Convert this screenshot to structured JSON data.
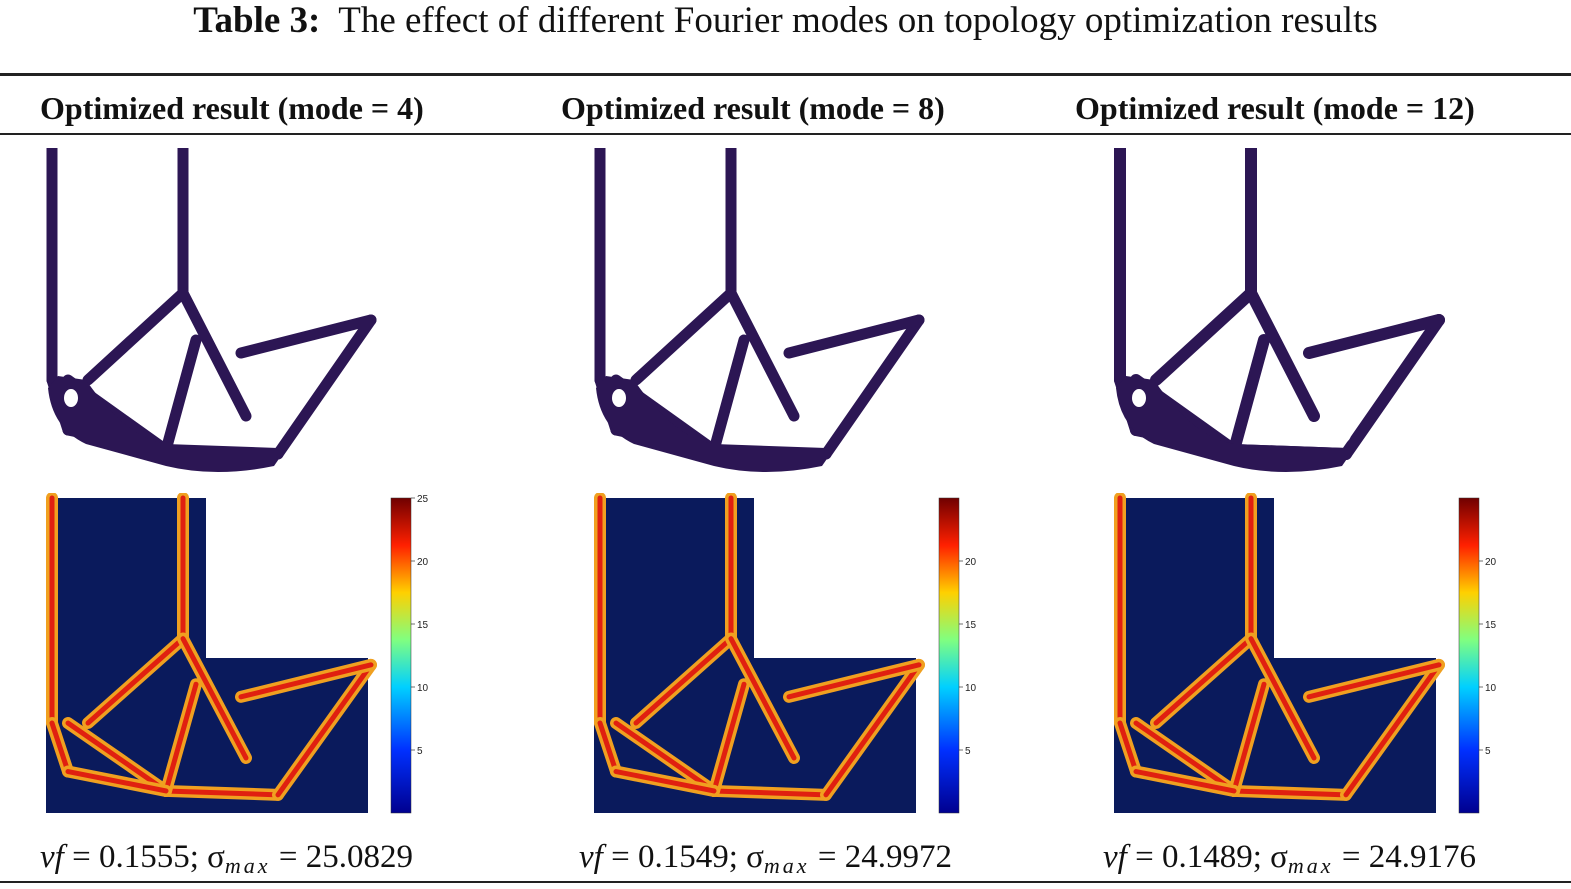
{
  "caption": {
    "label": "Table 3:",
    "text": "The effect of different Fourier modes on topology optimization results"
  },
  "columns": [
    {
      "header": "Optimized result (mode = 4)",
      "vf_symbol": "vf",
      "vf": "0.1555",
      "sigma_symbol": "σ",
      "sigma_sub": "max",
      "sigma": "25.0829",
      "colorbar_ticks": [
        "25",
        "20",
        "15",
        "10",
        "5"
      ]
    },
    {
      "header": "Optimized result (mode = 8)",
      "vf_symbol": "vf",
      "vf": "0.1549",
      "sigma_symbol": "σ",
      "sigma_sub": "max",
      "sigma": "24.9972",
      "colorbar_ticks": [
        "20",
        "15",
        "10",
        "5"
      ]
    },
    {
      "header": "Optimized result (mode = 12)",
      "vf_symbol": "vf",
      "vf": "0.1489",
      "sigma_symbol": "σ",
      "sigma_sub": "max",
      "sigma": "24.9176",
      "colorbar_ticks": [
        "20",
        "15",
        "10",
        "5"
      ]
    }
  ],
  "colors": {
    "structure": "#2c1654",
    "background": "#0a1a5c"
  }
}
